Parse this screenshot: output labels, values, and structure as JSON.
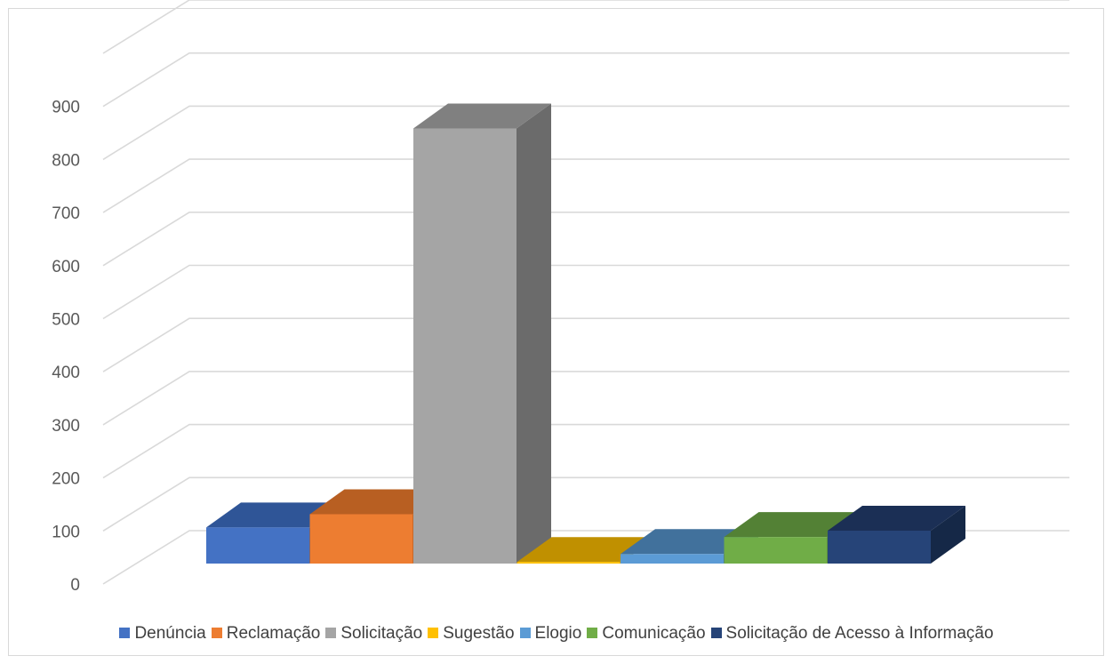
{
  "chart_data": {
    "type": "bar",
    "title": "",
    "xlabel": "",
    "ylabel": "",
    "ylim": [
      0,
      900
    ],
    "yticks": [
      0,
      100,
      200,
      300,
      400,
      500,
      600,
      700,
      800,
      900
    ],
    "grid": true,
    "legend_position": "bottom",
    "style": "3d-column",
    "categories": [
      "Denúncia",
      "Reclamação",
      "Solicitação",
      "Sugestão",
      "Elogio",
      "Comunicação",
      "Solicitação de Acesso à Informação"
    ],
    "values": [
      68,
      93,
      820,
      3,
      18,
      50,
      62
    ],
    "colors": {
      "front": [
        "#4472c4",
        "#ed7d31",
        "#a5a5a5",
        "#ffc000",
        "#5b9bd5",
        "#70ad47",
        "#264478"
      ],
      "top": [
        "#2f5597",
        "#b85f22",
        "#808080",
        "#c09000",
        "#41719c",
        "#538135",
        "#1b2f55"
      ],
      "side": [
        "#2a4d8f",
        "#a4521d",
        "#6b6b6b",
        "#a87e00",
        "#3a6690",
        "#4a7530",
        "#152847"
      ]
    },
    "gridline_color": "#d9d9d9"
  }
}
